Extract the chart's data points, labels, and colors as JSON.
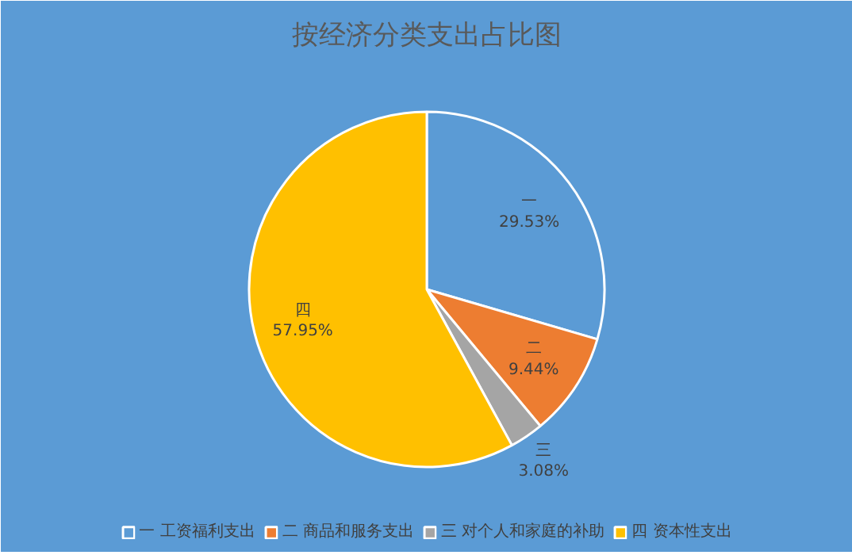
{
  "chart_data": {
    "type": "pie",
    "title": "按经济分类支出占比图",
    "categories": [
      "一 工资福利支出",
      "二 商品和服务支出",
      "三 对个人和家庭的补助",
      "四 资本性支出"
    ],
    "values": [
      29.53,
      9.44,
      3.08,
      57.95
    ],
    "value_labels": [
      "一\n29.53%",
      "二\n9.44%",
      "三\n3.08%",
      "四\n57.95%"
    ],
    "colors": [
      "#5b9bd5",
      "#ed7d31",
      "#a5a5a5",
      "#ffc000"
    ],
    "legend": "bottom"
  }
}
